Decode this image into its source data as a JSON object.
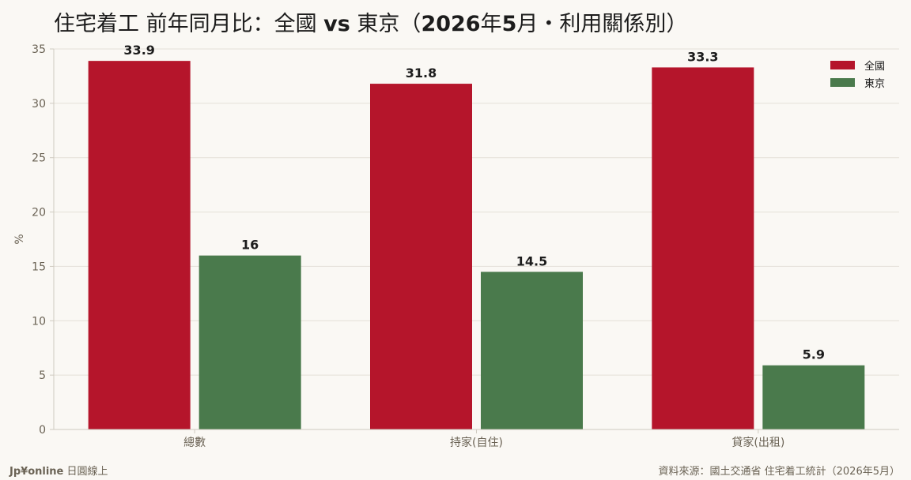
{
  "title": {
    "part1": "住宅着工 前年同月比：全國 ",
    "part2": "vs",
    "part3": " 東京（",
    "part4": "2026",
    "part5": "年",
    "part6": "5",
    "part7": "月・利用關係別）"
  },
  "footer": {
    "brand": "Jp¥online",
    "brand_suffix": " 日圓線上",
    "source": "資料來源：國土交通省 住宅着工統計（2026年5月）"
  },
  "colors": {
    "national": "#b5152b",
    "tokyo": "#4a7a4c",
    "grid": "#e4e0d8",
    "axis": "#cfcac0",
    "tick_text": "#6b6355",
    "label_text": "#1c1c1c"
  },
  "chart_data": {
    "type": "bar",
    "categories": [
      "總數",
      "持家(自住)",
      "貸家(出租)"
    ],
    "series": [
      {
        "name": "全國",
        "values": [
          33.9,
          31.8,
          33.3
        ],
        "value_labels": [
          "33.9",
          "31.8",
          "33.3"
        ]
      },
      {
        "name": "東京",
        "values": [
          16,
          14.5,
          5.9
        ],
        "value_labels": [
          "16",
          "14.5",
          "5.9"
        ]
      }
    ],
    "ylabel": "%",
    "xlabel": "",
    "ylim": [
      0,
      35
    ],
    "yticks": [
      0,
      5,
      10,
      15,
      20,
      25,
      30,
      35
    ],
    "grid": true,
    "legend_position": "top-right"
  }
}
